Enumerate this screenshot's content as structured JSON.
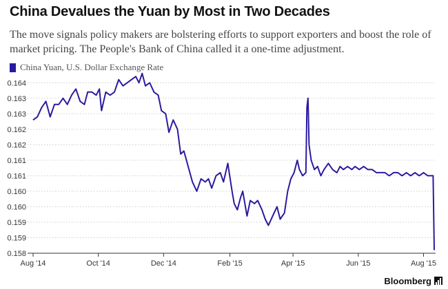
{
  "title": "China Devalues the Yuan by Most in Two Decades",
  "subtitle": "The move signals policy makers are bolstering efforts to support exporters and boost the role of market pricing. The People's Bank of China called it a one-time adjustment.",
  "brand": "Bloomberg",
  "colors": {
    "line": "#2a1a9e",
    "grid": "#cccccc",
    "axis": "#333333"
  },
  "chart_data": {
    "type": "line",
    "legend_position": "top-left",
    "grid": true,
    "y_ticks": [
      "0.164",
      "0.163",
      "0.163",
      "0.162",
      "0.162",
      "0.161",
      "0.161",
      "0.160",
      "0.160",
      "0.159",
      "0.159",
      "0.158"
    ],
    "y_tick_values": [
      0.164,
      0.1635,
      0.163,
      0.1625,
      0.162,
      0.1615,
      0.161,
      0.1605,
      0.16,
      0.1595,
      0.159,
      0.1585
    ],
    "ylim": [
      0.1585,
      0.16405
    ],
    "x_ticks": [
      "Aug '14",
      "Oct '14",
      "Dec '14",
      "Feb '15",
      "Apr '15",
      "Jun '15",
      "Aug '15"
    ],
    "x_tick_dates": [
      "2014-08-01",
      "2014-10-01",
      "2014-12-01",
      "2015-02-01",
      "2015-04-01",
      "2015-06-01",
      "2015-08-01"
    ],
    "xlim": [
      "2014-08-01",
      "2015-08-11"
    ],
    "series": [
      {
        "name": "China Yuan, U.S. Dollar Exchange Rate",
        "points": [
          [
            "2014-08-01",
            0.1628
          ],
          [
            "2014-08-05",
            0.1629
          ],
          [
            "2014-08-09",
            0.1632
          ],
          [
            "2014-08-13",
            0.1634
          ],
          [
            "2014-08-17",
            0.1629
          ],
          [
            "2014-08-21",
            0.1633
          ],
          [
            "2014-08-25",
            0.1633
          ],
          [
            "2014-08-29",
            0.1635
          ],
          [
            "2014-09-02",
            0.1633
          ],
          [
            "2014-09-06",
            0.1636
          ],
          [
            "2014-09-10",
            0.1638
          ],
          [
            "2014-09-14",
            0.1634
          ],
          [
            "2014-09-18",
            0.1633
          ],
          [
            "2014-09-21",
            0.1637
          ],
          [
            "2014-09-25",
            0.1637
          ],
          [
            "2014-09-29",
            0.1636
          ],
          [
            "2014-10-02",
            0.1638
          ],
          [
            "2014-10-04",
            0.1631
          ],
          [
            "2014-10-08",
            0.1637
          ],
          [
            "2014-10-12",
            0.1636
          ],
          [
            "2014-10-16",
            0.1637
          ],
          [
            "2014-10-20",
            0.1641
          ],
          [
            "2014-10-24",
            0.1639
          ],
          [
            "2014-10-28",
            0.164
          ],
          [
            "2014-11-01",
            0.1641
          ],
          [
            "2014-11-05",
            0.1642
          ],
          [
            "2014-11-08",
            0.164
          ],
          [
            "2014-11-11",
            0.1643
          ],
          [
            "2014-11-14",
            0.1639
          ],
          [
            "2014-11-18",
            0.164
          ],
          [
            "2014-11-22",
            0.1637
          ],
          [
            "2014-11-26",
            0.1636
          ],
          [
            "2014-11-29",
            0.1631
          ],
          [
            "2014-12-03",
            0.163
          ],
          [
            "2014-12-06",
            0.1624
          ],
          [
            "2014-12-10",
            0.1628
          ],
          [
            "2014-12-14",
            0.1625
          ],
          [
            "2014-12-17",
            0.1617
          ],
          [
            "2014-12-20",
            0.1618
          ],
          [
            "2014-12-24",
            0.1613
          ],
          [
            "2014-12-28",
            0.1608
          ],
          [
            "2015-01-01",
            0.1605
          ],
          [
            "2015-01-05",
            0.1609
          ],
          [
            "2015-01-09",
            0.1608
          ],
          [
            "2015-01-12",
            0.1609
          ],
          [
            "2015-01-15",
            0.1606
          ],
          [
            "2015-01-19",
            0.161
          ],
          [
            "2015-01-23",
            0.1611
          ],
          [
            "2015-01-26",
            0.1608
          ],
          [
            "2015-01-30",
            0.1614
          ],
          [
            "2015-02-03",
            0.1605
          ],
          [
            "2015-02-05",
            0.1601
          ],
          [
            "2015-02-08",
            0.1599
          ],
          [
            "2015-02-11",
            0.1603
          ],
          [
            "2015-02-13",
            0.1605
          ],
          [
            "2015-02-17",
            0.1597
          ],
          [
            "2015-02-20",
            0.1602
          ],
          [
            "2015-02-24",
            0.1601
          ],
          [
            "2015-02-27",
            0.1602
          ],
          [
            "2015-03-03",
            0.1599
          ],
          [
            "2015-03-06",
            0.1596
          ],
          [
            "2015-03-09",
            0.1594
          ],
          [
            "2015-03-13",
            0.1597
          ],
          [
            "2015-03-17",
            0.16
          ],
          [
            "2015-03-20",
            0.1596
          ],
          [
            "2015-03-24",
            0.1598
          ],
          [
            "2015-03-27",
            0.1605
          ],
          [
            "2015-03-30",
            0.1609
          ],
          [
            "2015-04-02",
            0.1611
          ],
          [
            "2015-04-05",
            0.1615
          ],
          [
            "2015-04-07",
            0.1612
          ],
          [
            "2015-04-10",
            0.161
          ],
          [
            "2015-04-13",
            0.1611
          ],
          [
            "2015-04-14",
            0.1632
          ],
          [
            "2015-04-15",
            0.1635
          ],
          [
            "2015-04-16",
            0.162
          ],
          [
            "2015-04-18",
            0.1615
          ],
          [
            "2015-04-21",
            0.1612
          ],
          [
            "2015-04-24",
            0.1613
          ],
          [
            "2015-04-27",
            0.161
          ],
          [
            "2015-04-30",
            0.1612
          ],
          [
            "2015-05-04",
            0.1614
          ],
          [
            "2015-05-08",
            0.1612
          ],
          [
            "2015-05-12",
            0.1611
          ],
          [
            "2015-05-15",
            0.1613
          ],
          [
            "2015-05-18",
            0.1612
          ],
          [
            "2015-05-22",
            0.1613
          ],
          [
            "2015-05-26",
            0.1612
          ],
          [
            "2015-05-29",
            0.1613
          ],
          [
            "2015-06-02",
            0.1612
          ],
          [
            "2015-06-06",
            0.1613
          ],
          [
            "2015-06-10",
            0.1612
          ],
          [
            "2015-06-14",
            0.1612
          ],
          [
            "2015-06-18",
            0.1611
          ],
          [
            "2015-06-22",
            0.1611
          ],
          [
            "2015-06-26",
            0.1611
          ],
          [
            "2015-06-30",
            0.161
          ],
          [
            "2015-07-04",
            0.1611
          ],
          [
            "2015-07-08",
            0.1611
          ],
          [
            "2015-07-12",
            0.161
          ],
          [
            "2015-07-16",
            0.1611
          ],
          [
            "2015-07-20",
            0.161
          ],
          [
            "2015-07-24",
            0.1611
          ],
          [
            "2015-07-28",
            0.161
          ],
          [
            "2015-08-01",
            0.1611
          ],
          [
            "2015-08-05",
            0.161
          ],
          [
            "2015-08-09",
            0.161
          ],
          [
            "2015-08-10",
            0.161
          ],
          [
            "2015-08-11",
            0.1586
          ]
        ]
      }
    ]
  }
}
